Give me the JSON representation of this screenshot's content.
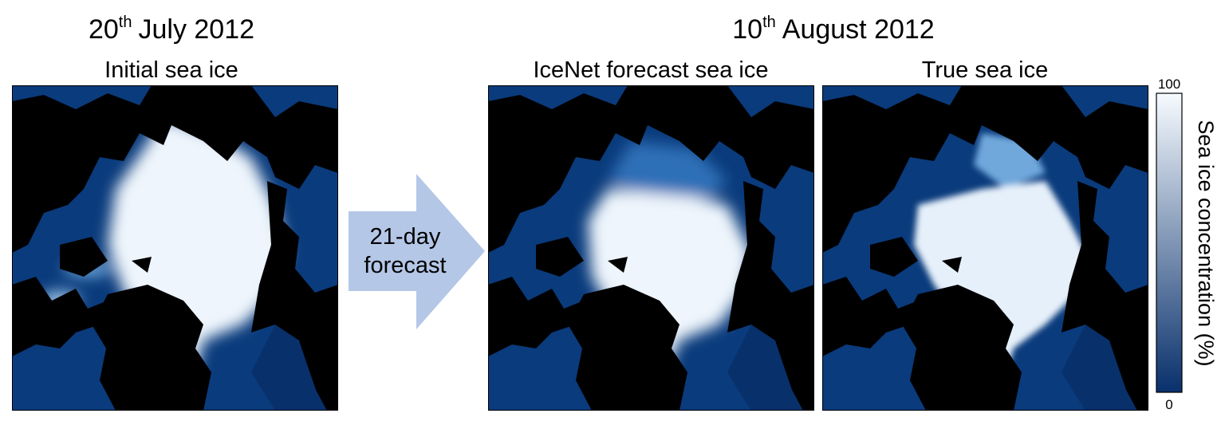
{
  "left": {
    "date": {
      "day": "20",
      "suffix": "th",
      "rest": "July 2012"
    },
    "panel_title": "Initial sea ice"
  },
  "arrow": {
    "label": [
      "21-day",
      "forecast"
    ]
  },
  "right": {
    "date": {
      "day": "10",
      "suffix": "th",
      "rest": "August 2012"
    },
    "panels": [
      {
        "title": "IceNet forecast sea ice"
      },
      {
        "title": "True sea ice"
      }
    ]
  },
  "colorbar": {
    "label": "Sea ice concentration (%)",
    "range": [
      0,
      100
    ],
    "ticks": [
      0,
      100
    ],
    "colors": [
      "#08306b",
      "#f7fbff"
    ]
  }
}
